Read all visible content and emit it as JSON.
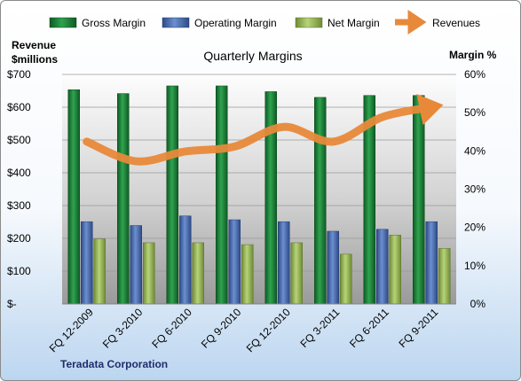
{
  "chart_data": {
    "type": "bar",
    "title": "Quarterly Margins",
    "y_left_label_line1": "Revenue",
    "y_left_label_line2": "$millions",
    "y_right_label": "Margin %",
    "footer": "Teradata Corporation",
    "categories": [
      "FQ 12-2009",
      "FQ 3-2010",
      "FQ 6-2010",
      "FQ 9-2010",
      "FQ 12-2010",
      "FQ 3-2011",
      "FQ 6-2011",
      "FQ 9-2011"
    ],
    "y_left_ticks": [
      "$-",
      "$100",
      "$200",
      "$300",
      "$400",
      "$500",
      "$600",
      "$700"
    ],
    "y_left_range": [
      0,
      700
    ],
    "y_right_ticks": [
      "0%",
      "10%",
      "20%",
      "30%",
      "40%",
      "50%",
      "60%"
    ],
    "y_right_range": [
      0,
      60
    ],
    "legend_position": "top",
    "grid": true,
    "series": [
      {
        "name": "Gross Margin",
        "type": "bar",
        "axis": "right",
        "color": "#1f8a3c",
        "values": [
          56,
          55,
          57,
          57,
          55.5,
          54,
          54.5,
          54.5
        ]
      },
      {
        "name": "Operating Margin",
        "type": "bar",
        "axis": "right",
        "color": "#4a6fb5",
        "values": [
          21.5,
          20.5,
          23,
          22,
          21.5,
          19,
          19.5,
          21.5
        ]
      },
      {
        "name": "Net Margin",
        "type": "bar",
        "axis": "right",
        "color": "#9bbb59",
        "values": [
          17,
          16,
          16,
          15.5,
          16,
          13,
          18,
          14.5
        ]
      },
      {
        "name": "Revenues",
        "type": "line",
        "axis": "left",
        "color": "#e8893a",
        "values": [
          495,
          435,
          465,
          480,
          540,
          495,
          570,
          600
        ]
      }
    ]
  }
}
